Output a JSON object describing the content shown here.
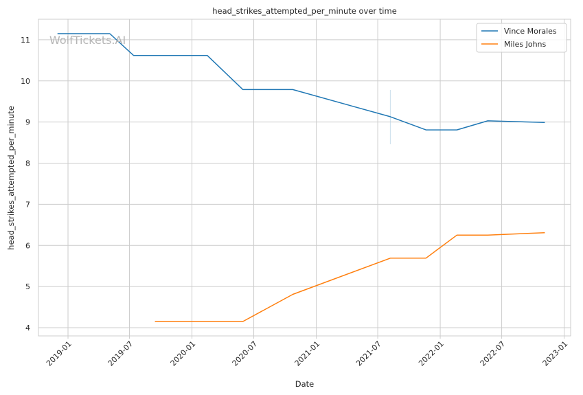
{
  "chart_data": {
    "type": "line",
    "title": "head_strikes_attempted_per_minute over time",
    "xlabel": "Date",
    "ylabel": "head_strikes_attempted_per_minute",
    "x_ticks": [
      "2019-01",
      "2019-07",
      "2020-01",
      "2020-07",
      "2021-01",
      "2021-07",
      "2022-01",
      "2022-07",
      "2023-01"
    ],
    "y_ticks": [
      4,
      5,
      6,
      7,
      8,
      9,
      10,
      11
    ],
    "xlim": [
      "2018-10-06",
      "2023-01-20"
    ],
    "ylim": [
      3.8,
      11.5
    ],
    "grid": true,
    "legend_position": "top-right",
    "watermark": "WolfTickets.AI",
    "series": [
      {
        "name": "Vince Morales",
        "color": "#1f77b4",
        "points": [
          {
            "x": "2018-12-01",
            "y": 11.15
          },
          {
            "x": "2019-05-04",
            "y": 11.15
          },
          {
            "x": "2019-07-13",
            "y": 10.62
          },
          {
            "x": "2020-02-15",
            "y": 10.62
          },
          {
            "x": "2020-05-30",
            "y": 9.79
          },
          {
            "x": "2020-10-24",
            "y": 9.79
          },
          {
            "x": "2021-08-07",
            "y": 9.13
          },
          {
            "x": "2021-11-20",
            "y": 8.81
          },
          {
            "x": "2022-02-19",
            "y": 8.81
          },
          {
            "x": "2022-05-21",
            "y": 9.03
          },
          {
            "x": "2022-11-05",
            "y": 8.99
          }
        ]
      },
      {
        "name": "Miles Johns",
        "color": "#ff7f0e",
        "points": [
          {
            "x": "2019-09-14",
            "y": 4.15
          },
          {
            "x": "2020-05-30",
            "y": 4.15
          },
          {
            "x": "2020-10-24",
            "y": 4.81
          },
          {
            "x": "2021-08-07",
            "y": 5.69
          },
          {
            "x": "2021-11-20",
            "y": 5.69
          },
          {
            "x": "2022-02-19",
            "y": 6.25
          },
          {
            "x": "2022-05-21",
            "y": 6.25
          },
          {
            "x": "2022-11-05",
            "y": 6.31
          }
        ]
      }
    ],
    "annotation_band": {
      "x": "2021-08-07",
      "y_range": [
        8.46,
        9.78
      ],
      "color": "#a6c8e0"
    }
  }
}
